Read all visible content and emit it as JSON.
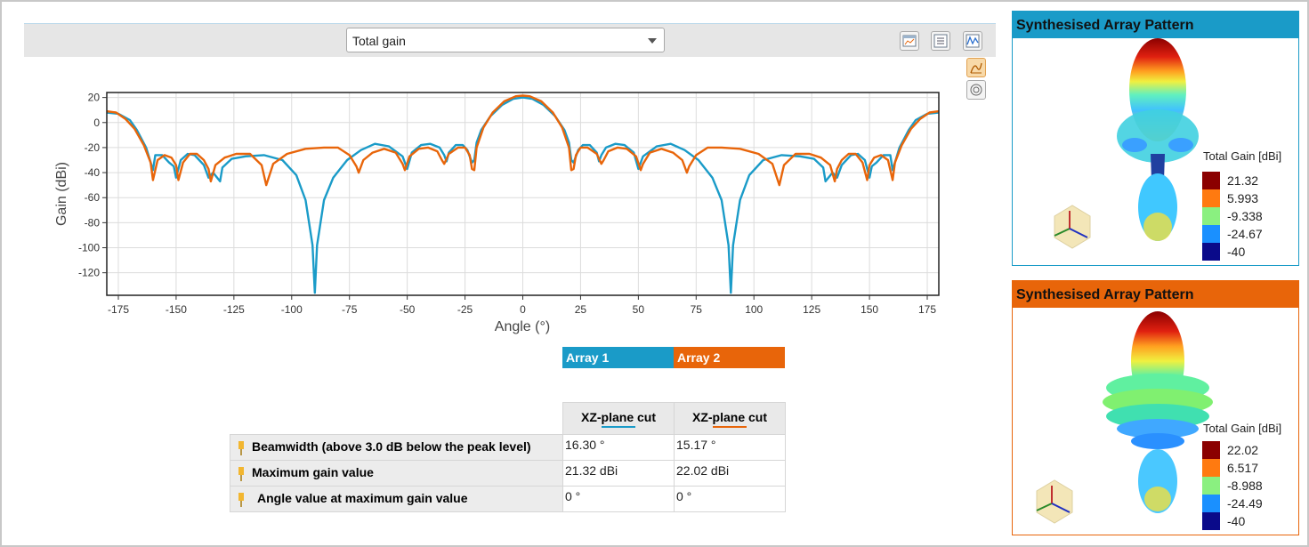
{
  "toolbar": {
    "quantity_selected": "Total gain",
    "icons": [
      "chart-view-icon",
      "table-view-icon",
      "line-plot-icon",
      "cartesian-plot-icon",
      "polar-plot-icon"
    ]
  },
  "chart_data": {
    "type": "line",
    "title": "",
    "xlabel": "Angle (°)",
    "ylabel": "Gain (dBi)",
    "xlim": [
      -180,
      180
    ],
    "ylim": [
      -138,
      24
    ],
    "xticks": [
      -175,
      -150,
      -125,
      -100,
      -75,
      -50,
      -25,
      0,
      25,
      50,
      75,
      100,
      125,
      150,
      175
    ],
    "yticks": [
      20,
      0,
      -20,
      -40,
      -60,
      -80,
      -100,
      -120
    ],
    "grid": true,
    "series": [
      {
        "name": "Array 1",
        "color": "#1a9bc8",
        "points": [
          [
            -180,
            8
          ],
          [
            -175,
            7
          ],
          [
            -170,
            2
          ],
          [
            -167,
            -6
          ],
          [
            -163,
            -20
          ],
          [
            -160,
            -38
          ],
          [
            -159,
            -26
          ],
          [
            -156,
            -26
          ],
          [
            -153,
            -32
          ],
          [
            -151,
            -35
          ],
          [
            -150,
            -44
          ],
          [
            -148,
            -30
          ],
          [
            -145,
            -25
          ],
          [
            -142,
            -26
          ],
          [
            -140,
            -30
          ],
          [
            -138,
            -34
          ],
          [
            -136,
            -44
          ],
          [
            -134,
            -40
          ],
          [
            -131,
            -47
          ],
          [
            -130,
            -36
          ],
          [
            -126,
            -29
          ],
          [
            -120,
            -27
          ],
          [
            -112,
            -26
          ],
          [
            -104,
            -30
          ],
          [
            -98,
            -42
          ],
          [
            -94,
            -62
          ],
          [
            -91,
            -98
          ],
          [
            -90,
            -136
          ],
          [
            -89,
            -98
          ],
          [
            -86,
            -62
          ],
          [
            -82,
            -44
          ],
          [
            -76,
            -30
          ],
          [
            -70,
            -22
          ],
          [
            -64,
            -17
          ],
          [
            -58,
            -19
          ],
          [
            -52,
            -27
          ],
          [
            -50,
            -37
          ],
          [
            -48,
            -24
          ],
          [
            -44,
            -18
          ],
          [
            -40,
            -17
          ],
          [
            -36,
            -20
          ],
          [
            -34,
            -26
          ],
          [
            -33,
            -31
          ],
          [
            -32,
            -24
          ],
          [
            -29,
            -18
          ],
          [
            -26,
            -18
          ],
          [
            -24,
            -22
          ],
          [
            -22,
            -32
          ],
          [
            -21,
            -30
          ],
          [
            -20,
            -16
          ],
          [
            -18,
            -6
          ],
          [
            -14,
            5
          ],
          [
            -9,
            14
          ],
          [
            -4,
            19
          ],
          [
            0,
            20
          ],
          [
            4,
            19
          ],
          [
            9,
            14
          ],
          [
            14,
            5
          ],
          [
            18,
            -6
          ],
          [
            20,
            -16
          ],
          [
            21,
            -30
          ],
          [
            22,
            -32
          ],
          [
            24,
            -22
          ],
          [
            26,
            -18
          ],
          [
            29,
            -18
          ],
          [
            32,
            -24
          ],
          [
            33,
            -31
          ],
          [
            34,
            -26
          ],
          [
            36,
            -20
          ],
          [
            40,
            -17
          ],
          [
            44,
            -18
          ],
          [
            48,
            -24
          ],
          [
            50,
            -37
          ],
          [
            52,
            -27
          ],
          [
            58,
            -19
          ],
          [
            64,
            -17
          ],
          [
            70,
            -22
          ],
          [
            76,
            -30
          ],
          [
            82,
            -44
          ],
          [
            86,
            -62
          ],
          [
            89,
            -98
          ],
          [
            90,
            -136
          ],
          [
            91,
            -98
          ],
          [
            94,
            -62
          ],
          [
            98,
            -42
          ],
          [
            104,
            -30
          ],
          [
            112,
            -26
          ],
          [
            120,
            -27
          ],
          [
            126,
            -29
          ],
          [
            130,
            -36
          ],
          [
            131,
            -47
          ],
          [
            134,
            -40
          ],
          [
            136,
            -44
          ],
          [
            138,
            -34
          ],
          [
            140,
            -30
          ],
          [
            142,
            -26
          ],
          [
            145,
            -25
          ],
          [
            148,
            -30
          ],
          [
            150,
            -44
          ],
          [
            151,
            -35
          ],
          [
            153,
            -32
          ],
          [
            156,
            -26
          ],
          [
            159,
            -26
          ],
          [
            160,
            -38
          ],
          [
            163,
            -20
          ],
          [
            167,
            -6
          ],
          [
            170,
            2
          ],
          [
            175,
            7
          ],
          [
            180,
            8
          ]
        ]
      },
      {
        "name": "Array 2",
        "color": "#e8650a",
        "points": [
          [
            -180,
            9
          ],
          [
            -176,
            8
          ],
          [
            -172,
            3
          ],
          [
            -168,
            -5
          ],
          [
            -164,
            -18
          ],
          [
            -161,
            -32
          ],
          [
            -160,
            -46
          ],
          [
            -158,
            -30
          ],
          [
            -155,
            -26
          ],
          [
            -152,
            -28
          ],
          [
            -150,
            -34
          ],
          [
            -149,
            -46
          ],
          [
            -147,
            -32
          ],
          [
            -144,
            -25
          ],
          [
            -141,
            -25
          ],
          [
            -138,
            -30
          ],
          [
            -136,
            -37
          ],
          [
            -135,
            -47
          ],
          [
            -133,
            -34
          ],
          [
            -129,
            -28
          ],
          [
            -124,
            -25
          ],
          [
            -118,
            -25
          ],
          [
            -113,
            -34
          ],
          [
            -111,
            -50
          ],
          [
            -108,
            -33
          ],
          [
            -102,
            -25
          ],
          [
            -94,
            -21
          ],
          [
            -86,
            -20
          ],
          [
            -80,
            -20
          ],
          [
            -75,
            -26
          ],
          [
            -72,
            -35
          ],
          [
            -71,
            -40
          ],
          [
            -69,
            -30
          ],
          [
            -65,
            -24
          ],
          [
            -60,
            -21
          ],
          [
            -55,
            -24
          ],
          [
            -52,
            -33
          ],
          [
            -51,
            -38
          ],
          [
            -49,
            -27
          ],
          [
            -45,
            -21
          ],
          [
            -41,
            -20
          ],
          [
            -37,
            -23
          ],
          [
            -35,
            -30
          ],
          [
            -34,
            -33
          ],
          [
            -32,
            -25
          ],
          [
            -28,
            -20
          ],
          [
            -25,
            -20
          ],
          [
            -23,
            -26
          ],
          [
            -22,
            -37
          ],
          [
            -21,
            -38
          ],
          [
            -20,
            -20
          ],
          [
            -17,
            -4
          ],
          [
            -13,
            8
          ],
          [
            -8,
            17
          ],
          [
            -3,
            21
          ],
          [
            0,
            21.5
          ],
          [
            3,
            21
          ],
          [
            8,
            17
          ],
          [
            13,
            8
          ],
          [
            17,
            -4
          ],
          [
            20,
            -20
          ],
          [
            21,
            -38
          ],
          [
            22,
            -37
          ],
          [
            23,
            -26
          ],
          [
            25,
            -20
          ],
          [
            28,
            -20
          ],
          [
            32,
            -25
          ],
          [
            34,
            -33
          ],
          [
            35,
            -30
          ],
          [
            37,
            -23
          ],
          [
            41,
            -20
          ],
          [
            45,
            -21
          ],
          [
            49,
            -27
          ],
          [
            51,
            -38
          ],
          [
            52,
            -33
          ],
          [
            55,
            -24
          ],
          [
            60,
            -21
          ],
          [
            65,
            -24
          ],
          [
            69,
            -30
          ],
          [
            71,
            -40
          ],
          [
            72,
            -35
          ],
          [
            75,
            -26
          ],
          [
            80,
            -20
          ],
          [
            86,
            -20
          ],
          [
            94,
            -21
          ],
          [
            102,
            -25
          ],
          [
            108,
            -33
          ],
          [
            111,
            -50
          ],
          [
            113,
            -34
          ],
          [
            118,
            -25
          ],
          [
            124,
            -25
          ],
          [
            129,
            -28
          ],
          [
            133,
            -34
          ],
          [
            135,
            -47
          ],
          [
            136,
            -37
          ],
          [
            138,
            -30
          ],
          [
            141,
            -25
          ],
          [
            144,
            -25
          ],
          [
            147,
            -32
          ],
          [
            149,
            -46
          ],
          [
            150,
            -34
          ],
          [
            152,
            -28
          ],
          [
            155,
            -26
          ],
          [
            158,
            -30
          ],
          [
            160,
            -46
          ],
          [
            161,
            -32
          ],
          [
            164,
            -18
          ],
          [
            168,
            -5
          ],
          [
            172,
            3
          ],
          [
            176,
            8
          ],
          [
            180,
            9
          ]
        ]
      }
    ]
  },
  "legend": {
    "array1": {
      "label": "Array 1",
      "color": "#1a9bc8"
    },
    "array2": {
      "label": "Array 2",
      "color": "#e8650a"
    }
  },
  "results": {
    "col1_header": "XZ-plane cut",
    "col2_header": "XZ-plane cut",
    "rows": [
      {
        "label": "Beamwidth (above 3.0 dB below the peak level)",
        "v1": "16.30 °",
        "v2": "15.17 °"
      },
      {
        "label": "Maximum gain value",
        "v1": "21.32 dBi",
        "v2": "22.02 dBi"
      },
      {
        "label": "Angle value at maximum gain value",
        "v1": "0 °",
        "v2": "0 °"
      }
    ]
  },
  "panel1": {
    "title": "Synthesised Array Pattern",
    "header_color": "#1a9bc8",
    "colorbar_title": "Total Gain [dBi]",
    "colorbar": [
      "21.32",
      "5.993",
      "-9.338",
      "-24.67",
      "-40"
    ]
  },
  "panel2": {
    "title": "Synthesised Array Pattern",
    "header_color": "#e8650a",
    "colorbar_title": "Total Gain [dBi]",
    "colorbar": [
      "22.02",
      "6.517",
      "-8.988",
      "-24.49",
      "-40"
    ]
  }
}
